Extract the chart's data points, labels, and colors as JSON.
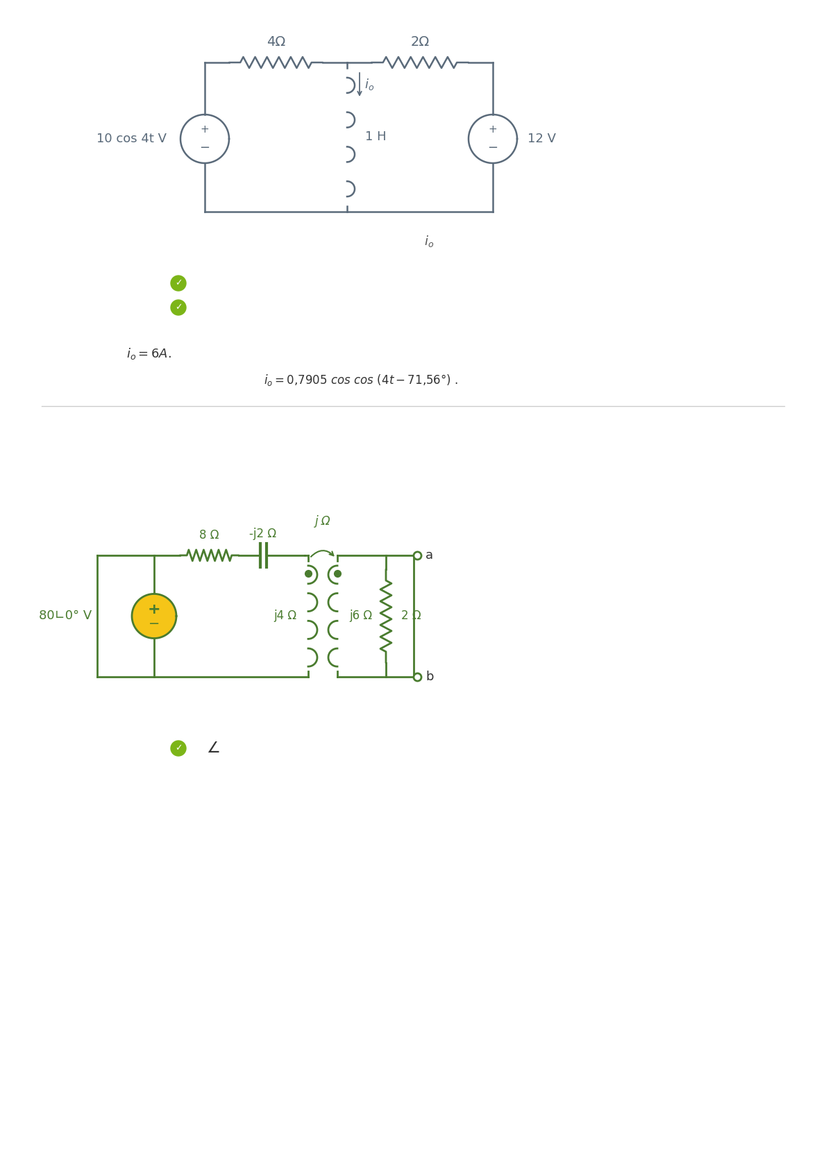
{
  "bg_color": "#ffffff",
  "c1_color": "#5a6a7a",
  "c1_lw": 1.8,
  "c2_color": "#4a7c2f",
  "c2_lw": 2.0,
  "ck_color": "#7cb518",
  "c1": {
    "res1_label": "4Ω",
    "res2_label": "2Ω",
    "ind_label": "1 H",
    "src1_label": "10 cos 4t V",
    "src2_label": "12 V"
  },
  "c2": {
    "res1_label": "8 Ω",
    "cap_label": "-j2 Ω",
    "mut_label": "j Ω",
    "ind1_label": "j4 Ω",
    "ind2_label": "j6 Ω",
    "res2_label": "2 Ω",
    "src_label": "80∟0° V",
    "term_a": "a",
    "term_b": "b"
  }
}
